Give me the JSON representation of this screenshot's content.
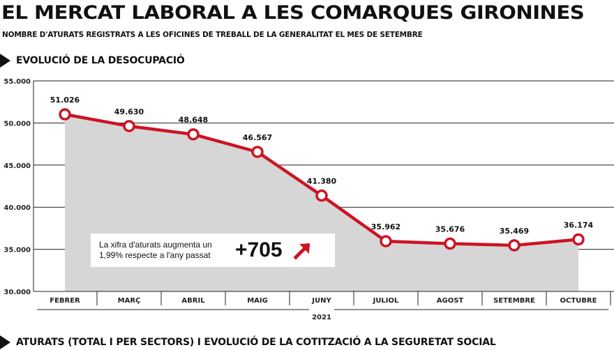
{
  "header": {
    "title": "EL MERCAT LABORAL A LES COMARQUES GIRONINES",
    "subtitle": "NOMBRE D'ATURATS REGISTRATS A LES OFICINES DE TREBALL DE LA GENERALITAT EL MES DE SETEMBRE"
  },
  "section": {
    "label": "EVOLUCIÓ DE LA DESOCUPACIÓ",
    "next_label": "ATURATS (TOTAL I PER SECTORS) I EVOLUCIÓ DE LA COTITZACIÓ A LA SEGURETAT SOCIAL"
  },
  "callout": {
    "text": "La xifra d'aturats augmenta un 1,99% respecte a l'any passat",
    "value": "+705",
    "arrow_icon": "arrow-up-right-icon"
  },
  "chart_data": {
    "type": "area",
    "title": "EVOLUCIÓ DE LA DESOCUPACIÓ",
    "xlabel": "2021",
    "ylabel": "",
    "categories": [
      "FEBRER",
      "MARÇ",
      "ABRIL",
      "MAIG",
      "JUNY",
      "JULIOL",
      "AGOST",
      "SETEMBRE",
      "OCTUBRE"
    ],
    "series": [
      {
        "values": [
          51026,
          49630,
          48648,
          46567,
          41380,
          35962,
          35676,
          35469,
          36174
        ],
        "labels": [
          "51.026",
          "49.630",
          "48.648",
          "46.567",
          "41.380",
          "35.962",
          "35.676",
          "35.469",
          "36.174"
        ]
      }
    ],
    "ylim": [
      30000,
      55000
    ],
    "yticks": [
      30000,
      35000,
      40000,
      45000,
      50000,
      55000
    ],
    "ytick_labels": [
      "30.000",
      "35.000",
      "40.000",
      "45.000",
      "50.000",
      "55.000"
    ],
    "grid": true,
    "colors": {
      "line": "#cc1424",
      "area": "#d6d6d6",
      "grid": "#222222"
    }
  }
}
